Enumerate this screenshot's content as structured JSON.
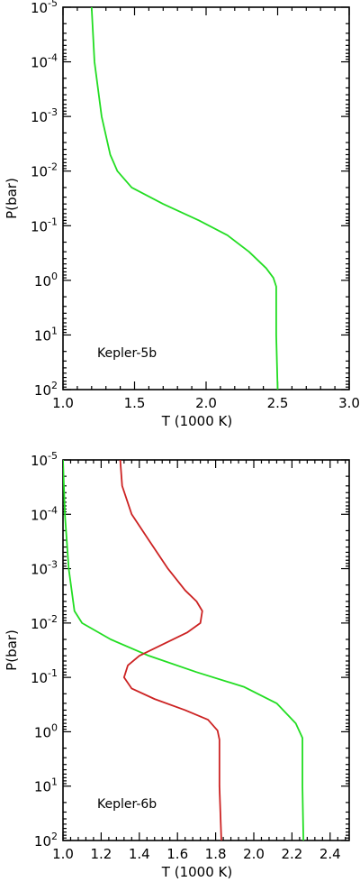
{
  "chart_data": [
    {
      "type": "line",
      "title": "",
      "xlabel": "T (1000 K)",
      "ylabel": "P(bar)",
      "xlim": [
        1.0,
        3.0
      ],
      "xticks": [
        1.0,
        1.5,
        2.0,
        2.5,
        3.0
      ],
      "xtick_labels": [
        "1.0",
        "1.5",
        "2.0",
        "2.5",
        "3.0"
      ],
      "ylim": [
        1e-05,
        100.0
      ],
      "yscale": "log",
      "y_inverted": true,
      "yticks": [
        1e-05,
        0.0001,
        0.001,
        0.01,
        0.1,
        1.0,
        10.0,
        100.0
      ],
      "ytick_exponents": [
        "-5",
        "-4",
        "-3",
        "-2",
        "-1",
        "0",
        "1",
        "2"
      ],
      "annotation": "Kepler-5b",
      "series": [
        {
          "color": "#22dd22",
          "points": [
            [
              1.2,
              1e-05
            ],
            [
              1.22,
              0.0001
            ],
            [
              1.27,
              0.001
            ],
            [
              1.33,
              0.005
            ],
            [
              1.38,
              0.01
            ],
            [
              1.48,
              0.02
            ],
            [
              1.7,
              0.04
            ],
            [
              1.95,
              0.08
            ],
            [
              2.15,
              0.15
            ],
            [
              2.3,
              0.3
            ],
            [
              2.42,
              0.6
            ],
            [
              2.47,
              0.9
            ],
            [
              2.49,
              1.3
            ],
            [
              2.49,
              10.0
            ],
            [
              2.5,
              100.0
            ]
          ]
        }
      ]
    },
    {
      "type": "line",
      "title": "",
      "xlabel": "T (1000 K)",
      "ylabel": "P(bar)",
      "xlim": [
        1.0,
        2.5
      ],
      "xticks": [
        1.0,
        1.2,
        1.4,
        1.6,
        1.8,
        2.0,
        2.2,
        2.4
      ],
      "xtick_labels": [
        "1.0",
        "1.2",
        "1.4",
        "1.6",
        "1.8",
        "2.0",
        "2.2",
        "2.4"
      ],
      "ylim": [
        1e-05,
        100.0
      ],
      "yscale": "log",
      "y_inverted": true,
      "yticks": [
        1e-05,
        0.0001,
        0.001,
        0.01,
        0.1,
        1.0,
        10.0,
        100.0
      ],
      "ytick_exponents": [
        "-5",
        "-4",
        "-3",
        "-2",
        "-1",
        "0",
        "1",
        "2"
      ],
      "annotation": "Kepler-6b",
      "series": [
        {
          "color": "#22dd22",
          "points": [
            [
              1.0,
              1e-05
            ],
            [
              1.01,
              0.0001
            ],
            [
              1.03,
              0.001
            ],
            [
              1.06,
              0.006
            ],
            [
              1.1,
              0.01
            ],
            [
              1.25,
              0.02
            ],
            [
              1.45,
              0.04
            ],
            [
              1.7,
              0.08
            ],
            [
              1.95,
              0.15
            ],
            [
              2.12,
              0.3
            ],
            [
              2.22,
              0.7
            ],
            [
              2.255,
              1.3
            ],
            [
              2.255,
              10.0
            ],
            [
              2.26,
              100.0
            ]
          ]
        },
        {
          "color": "#cc2222",
          "points": [
            [
              1.3,
              1e-05
            ],
            [
              1.31,
              3e-05
            ],
            [
              1.36,
              0.0001
            ],
            [
              1.45,
              0.0003
            ],
            [
              1.55,
              0.001
            ],
            [
              1.64,
              0.0025
            ],
            [
              1.7,
              0.004
            ],
            [
              1.73,
              0.006
            ],
            [
              1.72,
              0.01
            ],
            [
              1.65,
              0.015
            ],
            [
              1.52,
              0.025
            ],
            [
              1.4,
              0.04
            ],
            [
              1.34,
              0.06
            ],
            [
              1.32,
              0.1
            ],
            [
              1.36,
              0.16
            ],
            [
              1.48,
              0.25
            ],
            [
              1.64,
              0.4
            ],
            [
              1.76,
              0.6
            ],
            [
              1.81,
              0.95
            ],
            [
              1.82,
              1.4
            ],
            [
              1.82,
              10.0
            ],
            [
              1.83,
              100.0
            ]
          ]
        }
      ]
    }
  ]
}
